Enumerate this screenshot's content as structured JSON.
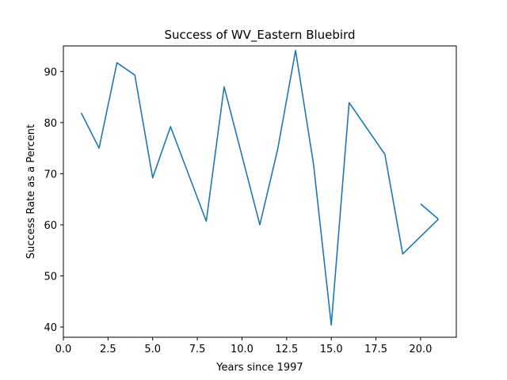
{
  "chart_data": {
    "type": "line",
    "title": "Success of WV_Eastern Bluebird",
    "xlabel": "Years since 1997",
    "ylabel": "Success Rate as a Percent",
    "xlim": [
      0.0,
      22.0
    ],
    "ylim": [
      38.0,
      95.0
    ],
    "xticks": [
      0.0,
      2.5,
      5.0,
      7.5,
      10.0,
      12.5,
      15.0,
      17.5,
      20.0
    ],
    "xtick_labels": [
      "0.0",
      "2.5",
      "5.0",
      "7.5",
      "10.0",
      "12.5",
      "15.0",
      "17.5",
      "20.0"
    ],
    "yticks": [
      40,
      50,
      60,
      70,
      80,
      90
    ],
    "ytick_labels": [
      "40",
      "50",
      "60",
      "70",
      "80",
      "90"
    ],
    "grid": false,
    "color": "#1f77b4",
    "segments": [
      {
        "x": [
          1,
          2,
          3,
          4,
          5,
          6,
          8,
          9,
          11,
          12,
          13,
          14,
          15,
          16,
          18,
          19,
          21
        ],
        "y": [
          81.9,
          75.0,
          91.7,
          89.3,
          69.2,
          79.2,
          60.7,
          87.0,
          60.0,
          74.8,
          94.1,
          72.0,
          40.4,
          83.9,
          73.8,
          54.3,
          61.1
        ]
      },
      {
        "x": [
          20,
          21
        ],
        "y": [
          64.1,
          61.1
        ]
      }
    ]
  }
}
